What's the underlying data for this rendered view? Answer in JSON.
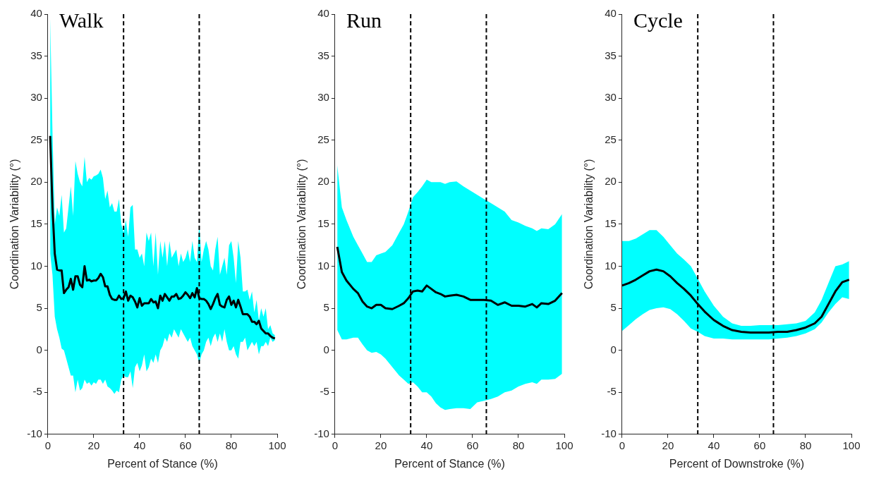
{
  "chart_data": [
    {
      "type": "line",
      "title": "Walk",
      "xlabel": "Percent of Stance (%)",
      "ylabel": "Coordination Variability (°)",
      "xlim": [
        0,
        100
      ],
      "xticks": [
        0,
        20,
        40,
        60,
        80,
        100
      ],
      "ylim": [
        -10,
        40
      ],
      "yticks": [
        -10,
        -5,
        0,
        5,
        10,
        15,
        20,
        25,
        30,
        35,
        40
      ],
      "grid": false,
      "legend": false,
      "marker": "none",
      "line_style": "solid",
      "x": [
        1,
        2,
        3,
        4,
        5,
        6,
        7,
        8,
        9,
        10,
        11,
        12,
        13,
        14,
        15,
        16,
        17,
        18,
        19,
        20,
        21,
        22,
        23,
        24,
        25,
        26,
        27,
        28,
        29,
        30,
        31,
        32,
        33,
        34,
        35,
        36,
        37,
        38,
        39,
        40,
        41,
        42,
        43,
        44,
        45,
        46,
        47,
        48,
        49,
        50,
        51,
        52,
        53,
        54,
        55,
        56,
        57,
        58,
        59,
        60,
        61,
        62,
        63,
        64,
        65,
        66,
        67,
        68,
        69,
        70,
        71,
        72,
        73,
        74,
        75,
        76,
        77,
        78,
        79,
        80,
        81,
        82,
        83,
        84,
        85,
        86,
        87,
        88,
        89,
        90,
        91,
        92,
        93,
        94,
        95,
        96,
        97,
        98,
        99
      ],
      "series": [
        {
          "color": "#000000",
          "values": [
            25.5,
            17,
            11.5,
            9.6,
            9.5,
            9.5,
            6.8,
            7.2,
            7.5,
            8.5,
            7.2,
            8.8,
            8.8,
            7.8,
            7.5,
            10,
            8.3,
            8.4,
            8.2,
            8.3,
            8.3,
            8.6,
            9.1,
            8.7,
            7.6,
            7.6,
            6.6,
            6.1,
            6,
            6,
            6.5,
            6.1,
            6.2,
            7,
            5.9,
            6.5,
            6.3,
            5.8,
            5.1,
            6.2,
            5.3,
            5.6,
            5.6,
            5.6,
            6.1,
            5.7,
            5.8,
            5,
            6.5,
            5.9,
            6.7,
            6.3,
            5.9,
            6.4,
            6.4,
            6.7,
            6.1,
            6.2,
            6.5,
            6.9,
            6.6,
            6.2,
            6.8,
            6.3,
            7.4,
            6.2,
            6.1,
            6.1,
            5.9,
            5.5,
            4.9,
            5.5,
            6.2,
            6.7,
            5.4,
            5.2,
            5.1,
            6,
            6.4,
            5.4,
            5.9,
            5.1,
            6,
            5.2,
            4.3,
            4.3,
            4.3,
            4,
            3.4,
            3.4,
            3.1,
            3.5,
            2.6,
            2.3,
            2,
            2,
            1.7,
            1.5,
            1.4
          ],
          "upper": [
            39.5,
            26,
            15,
            17,
            16,
            18.5,
            14,
            14.5,
            17,
            19.5,
            16,
            22.5,
            21,
            20,
            19.5,
            23,
            20,
            20.5,
            20.3,
            20.7,
            20.8,
            21,
            21.5,
            20.5,
            18,
            19,
            17,
            17.5,
            16.5,
            16.5,
            18,
            15,
            14,
            15.5,
            13.5,
            17,
            17.3,
            12,
            12,
            11,
            11.5,
            10,
            14,
            13,
            14,
            10,
            14,
            9,
            13,
            11,
            13,
            10,
            13,
            11,
            11.5,
            12,
            10,
            11.5,
            10.5,
            11,
            12,
            10.5,
            13,
            11,
            10.5,
            15,
            10.5,
            12,
            13,
            12,
            10,
            9.5,
            12,
            13.5,
            9,
            10,
            11,
            9,
            12.5,
            13,
            11,
            8,
            13,
            11,
            7,
            7,
            7.2,
            6,
            7,
            4.5,
            6,
            3.5,
            5,
            4,
            5,
            2.5,
            3,
            2,
            1.8
          ],
          "lower": [
            11.5,
            9,
            4,
            2.5,
            1.5,
            0.2,
            0,
            -1,
            -2,
            -3,
            -3,
            -5,
            -3.5,
            -4.8,
            -4.5,
            -3.5,
            -4,
            -3.8,
            -4.2,
            -3.8,
            -4,
            -3.5,
            -3.5,
            -4,
            -3.5,
            -4.3,
            -4.5,
            -4.8,
            -5.2,
            -4.8,
            -5,
            -3.5,
            -3,
            -3.2,
            -3.2,
            -2.5,
            -4.5,
            -2,
            -1.5,
            -2.5,
            -1.8,
            -0.5,
            -2.5,
            -2,
            -1,
            -1.5,
            -0.5,
            -1.5,
            0,
            0.5,
            1.5,
            1,
            2,
            1.5,
            2.5,
            2,
            1.5,
            2.5,
            2,
            1.5,
            1,
            1.5,
            0.5,
            0,
            -0.5,
            -1.5,
            -0.5,
            0,
            1,
            1.5,
            0.5,
            1.5,
            2,
            1,
            2,
            1,
            2.5,
            1,
            0,
            0,
            0.5,
            -0.5,
            -1,
            1,
            1,
            1.5,
            0,
            0.5,
            1,
            0.5,
            1,
            -0.5,
            0.5,
            0.5,
            1,
            0.5,
            1.5,
            1,
            1.2
          ]
        }
      ],
      "ref_lines": [
        {
          "axis": "x",
          "value": 33,
          "color": "#000000",
          "line_style": "dashed"
        },
        {
          "axis": "x",
          "value": 66,
          "color": "#000000",
          "line_style": "dashed"
        }
      ]
    },
    {
      "type": "line",
      "title": "Run",
      "xlabel": "Percent of Stance (%)",
      "ylabel": "Coordination Variability (°)",
      "xlim": [
        0,
        100
      ],
      "xticks": [
        0,
        20,
        40,
        60,
        80,
        100
      ],
      "ylim": [
        -10,
        40
      ],
      "yticks": [
        -10,
        -5,
        0,
        5,
        10,
        15,
        20,
        25,
        30,
        35,
        40
      ],
      "grid": false,
      "legend": false,
      "marker": "none",
      "line_style": "solid",
      "x": [
        1,
        3,
        5,
        8,
        10,
        12,
        14,
        16,
        18,
        20,
        22,
        25,
        28,
        30,
        32,
        34,
        36,
        38,
        40,
        42,
        44,
        46,
        48,
        50,
        53,
        56,
        59,
        62,
        65,
        68,
        71,
        74,
        77,
        80,
        83,
        86,
        88,
        90,
        93,
        96,
        99
      ],
      "series": [
        {
          "color": "#000000",
          "values": [
            12.3,
            9.3,
            8.3,
            7.3,
            6.8,
            5.8,
            5.2,
            5,
            5.4,
            5.4,
            5,
            4.9,
            5.3,
            5.6,
            6.2,
            7,
            7.1,
            7,
            7.7,
            7.3,
            6.9,
            6.7,
            6.4,
            6.5,
            6.6,
            6.4,
            6,
            6,
            6,
            5.9,
            5.4,
            5.7,
            5.3,
            5.3,
            5.2,
            5.5,
            5.1,
            5.6,
            5.5,
            5.9,
            6.8
          ],
          "upper": [
            22,
            17,
            15.5,
            13.5,
            12.5,
            11.5,
            10.5,
            10.5,
            11.3,
            11.5,
            11.7,
            12.5,
            14,
            15,
            16.5,
            18.2,
            18.8,
            19.5,
            20.3,
            20,
            20,
            20,
            19.8,
            20,
            20.1,
            19.5,
            19,
            18.5,
            18,
            17.5,
            17,
            16.5,
            15.5,
            15.2,
            14.8,
            14.5,
            14.2,
            14.5,
            14.4,
            15,
            16.2
          ],
          "lower": [
            2.4,
            1.3,
            1.3,
            1.5,
            1.5,
            0.7,
            0,
            -0.3,
            -0.2,
            -0.5,
            -1,
            -2,
            -3,
            -3.5,
            -4,
            -3.8,
            -4.3,
            -5,
            -5,
            -5.5,
            -6.3,
            -6.8,
            -7.1,
            -7,
            -6.9,
            -6.9,
            -7,
            -6.2,
            -6,
            -5.8,
            -5.5,
            -5,
            -4.8,
            -4.3,
            -4,
            -3.8,
            -4,
            -3.5,
            -3.5,
            -3.4,
            -2.8
          ]
        }
      ],
      "ref_lines": [
        {
          "axis": "x",
          "value": 33,
          "color": "#000000",
          "line_style": "dashed"
        },
        {
          "axis": "x",
          "value": 66,
          "color": "#000000",
          "line_style": "dashed"
        }
      ]
    },
    {
      "type": "line",
      "title": "Cycle",
      "xlabel": "Percent of Downstroke (%)",
      "ylabel": "Coordination Variability (°)",
      "xlim": [
        0,
        100
      ],
      "xticks": [
        0,
        20,
        40,
        60,
        80,
        100
      ],
      "ylim": [
        -10,
        40
      ],
      "yticks": [
        -10,
        -5,
        0,
        5,
        10,
        15,
        20,
        25,
        30,
        35,
        40
      ],
      "grid": false,
      "legend": false,
      "marker": "none",
      "line_style": "solid",
      "x": [
        0,
        3,
        6,
        9,
        12,
        15,
        18,
        21,
        24,
        27,
        30,
        33,
        36,
        40,
        44,
        48,
        52,
        56,
        60,
        64,
        68,
        72,
        76,
        80,
        84,
        87,
        90,
        93,
        96,
        99
      ],
      "series": [
        {
          "color": "#000000",
          "values": [
            7.7,
            8,
            8.4,
            8.9,
            9.4,
            9.6,
            9.4,
            8.8,
            8,
            7.3,
            6.5,
            5.5,
            4.6,
            3.6,
            2.9,
            2.4,
            2.2,
            2.1,
            2.1,
            2.1,
            2.2,
            2.2,
            2.4,
            2.7,
            3.2,
            4,
            5.5,
            7,
            8.1,
            8.4
          ],
          "upper": [
            13,
            13,
            13.3,
            13.8,
            14.3,
            14.3,
            13.5,
            12.5,
            11.5,
            10.8,
            10,
            8.5,
            7,
            5.3,
            4,
            3.2,
            2.9,
            2.9,
            3,
            3,
            3,
            3.1,
            3.2,
            3.5,
            4.5,
            6,
            8,
            10,
            10.2,
            10.6
          ],
          "lower": [
            2.3,
            3,
            3.7,
            4.3,
            4.8,
            5,
            5.1,
            4.9,
            4.3,
            3.5,
            2.6,
            2.2,
            1.7,
            1.4,
            1.4,
            1.3,
            1.3,
            1.3,
            1.3,
            1.3,
            1.4,
            1.5,
            1.7,
            2,
            2.5,
            3.3,
            4.5,
            5.5,
            6.3,
            6.1
          ]
        }
      ],
      "ref_lines": [
        {
          "axis": "x",
          "value": 33,
          "color": "#000000",
          "line_style": "dashed"
        },
        {
          "axis": "x",
          "value": 66,
          "color": "#000000",
          "line_style": "dashed"
        }
      ]
    }
  ]
}
